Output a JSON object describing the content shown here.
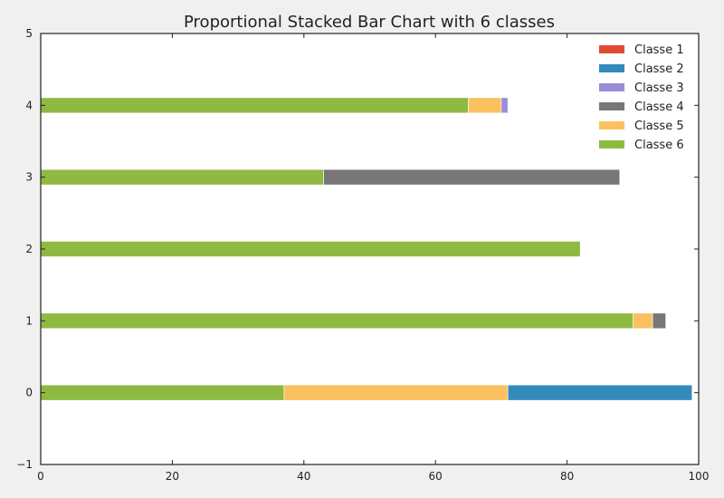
{
  "chart_data": {
    "type": "bar",
    "orientation": "horizontal",
    "stacked": true,
    "title": "Proportional Stacked Bar Chart with 6 classes",
    "xlabel": "",
    "ylabel": "",
    "xlim": [
      0,
      100
    ],
    "ylim": [
      -1,
      5
    ],
    "xticks": [
      "0",
      "20",
      "40",
      "60",
      "80",
      "100"
    ],
    "yticks": [
      "−1",
      "0",
      "1",
      "2",
      "3",
      "4",
      "5"
    ],
    "grid": false,
    "legend_position": "top-right",
    "categories": [
      0,
      1,
      2,
      3,
      4
    ],
    "series": [
      {
        "name": "Classe 1",
        "color": "#e24a33",
        "values": [
          0,
          0,
          0,
          0,
          0
        ]
      },
      {
        "name": "Classe 2",
        "color": "#348abd",
        "values": [
          28,
          0,
          0,
          0,
          0
        ]
      },
      {
        "name": "Classe 3",
        "color": "#988ed5",
        "values": [
          0,
          0,
          0,
          0,
          1
        ]
      },
      {
        "name": "Classe 4",
        "color": "#777777",
        "values": [
          0,
          2,
          0,
          45,
          0
        ]
      },
      {
        "name": "Classe 5",
        "color": "#fbc15e",
        "values": [
          34,
          3,
          0,
          0,
          5
        ]
      },
      {
        "name": "Classe 6",
        "color": "#8eba42",
        "values": [
          37,
          90,
          82,
          43,
          65
        ]
      }
    ]
  }
}
